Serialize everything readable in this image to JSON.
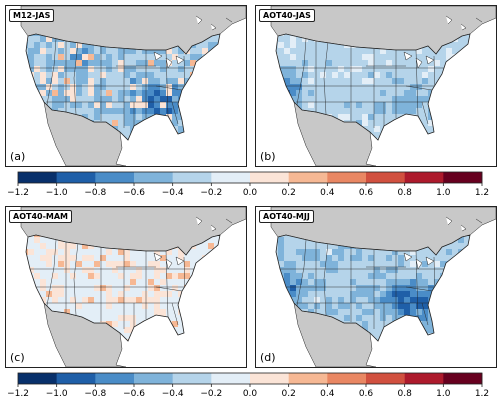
{
  "panels": [
    {
      "id": "p-a",
      "tag": "M12-JAS",
      "label": "(a)",
      "intensity": 1.0,
      "positive": 0.15,
      "hotspot": "southeast"
    },
    {
      "id": "p-b",
      "tag": "AOT40-JAS",
      "label": "(b)",
      "intensity": 0.75,
      "positive": 0.0,
      "hotspot": "west"
    },
    {
      "id": "p-c",
      "tag": "AOT40-MAM",
      "label": "(c)",
      "intensity": 0.25,
      "positive": 0.35,
      "hotspot": "none"
    },
    {
      "id": "p-d",
      "tag": "AOT40-MJJ",
      "label": "(d)",
      "intensity": 0.9,
      "positive": 0.0,
      "hotspot": "southeast-west"
    }
  ],
  "colorbar": {
    "ticks": [
      "−1.2",
      "−1.0",
      "−0.8",
      "−0.6",
      "−0.4",
      "−0.2",
      "0.0",
      "0.2",
      "0.4",
      "0.6",
      "0.8",
      "1.0",
      "1.2"
    ],
    "min": -1.2,
    "max": 1.2,
    "colors": [
      "#08306b",
      "#1f5fa8",
      "#4a8cc7",
      "#7fb3da",
      "#b5d4ea",
      "#e3eef7",
      "#fbe4d7",
      "#f6b894",
      "#e98763",
      "#d1503f",
      "#ad1a2c",
      "#67001f"
    ]
  },
  "map_colors": {
    "land_other": "#c8c8c8",
    "ocean": "#ffffff",
    "border": "#222222"
  }
}
